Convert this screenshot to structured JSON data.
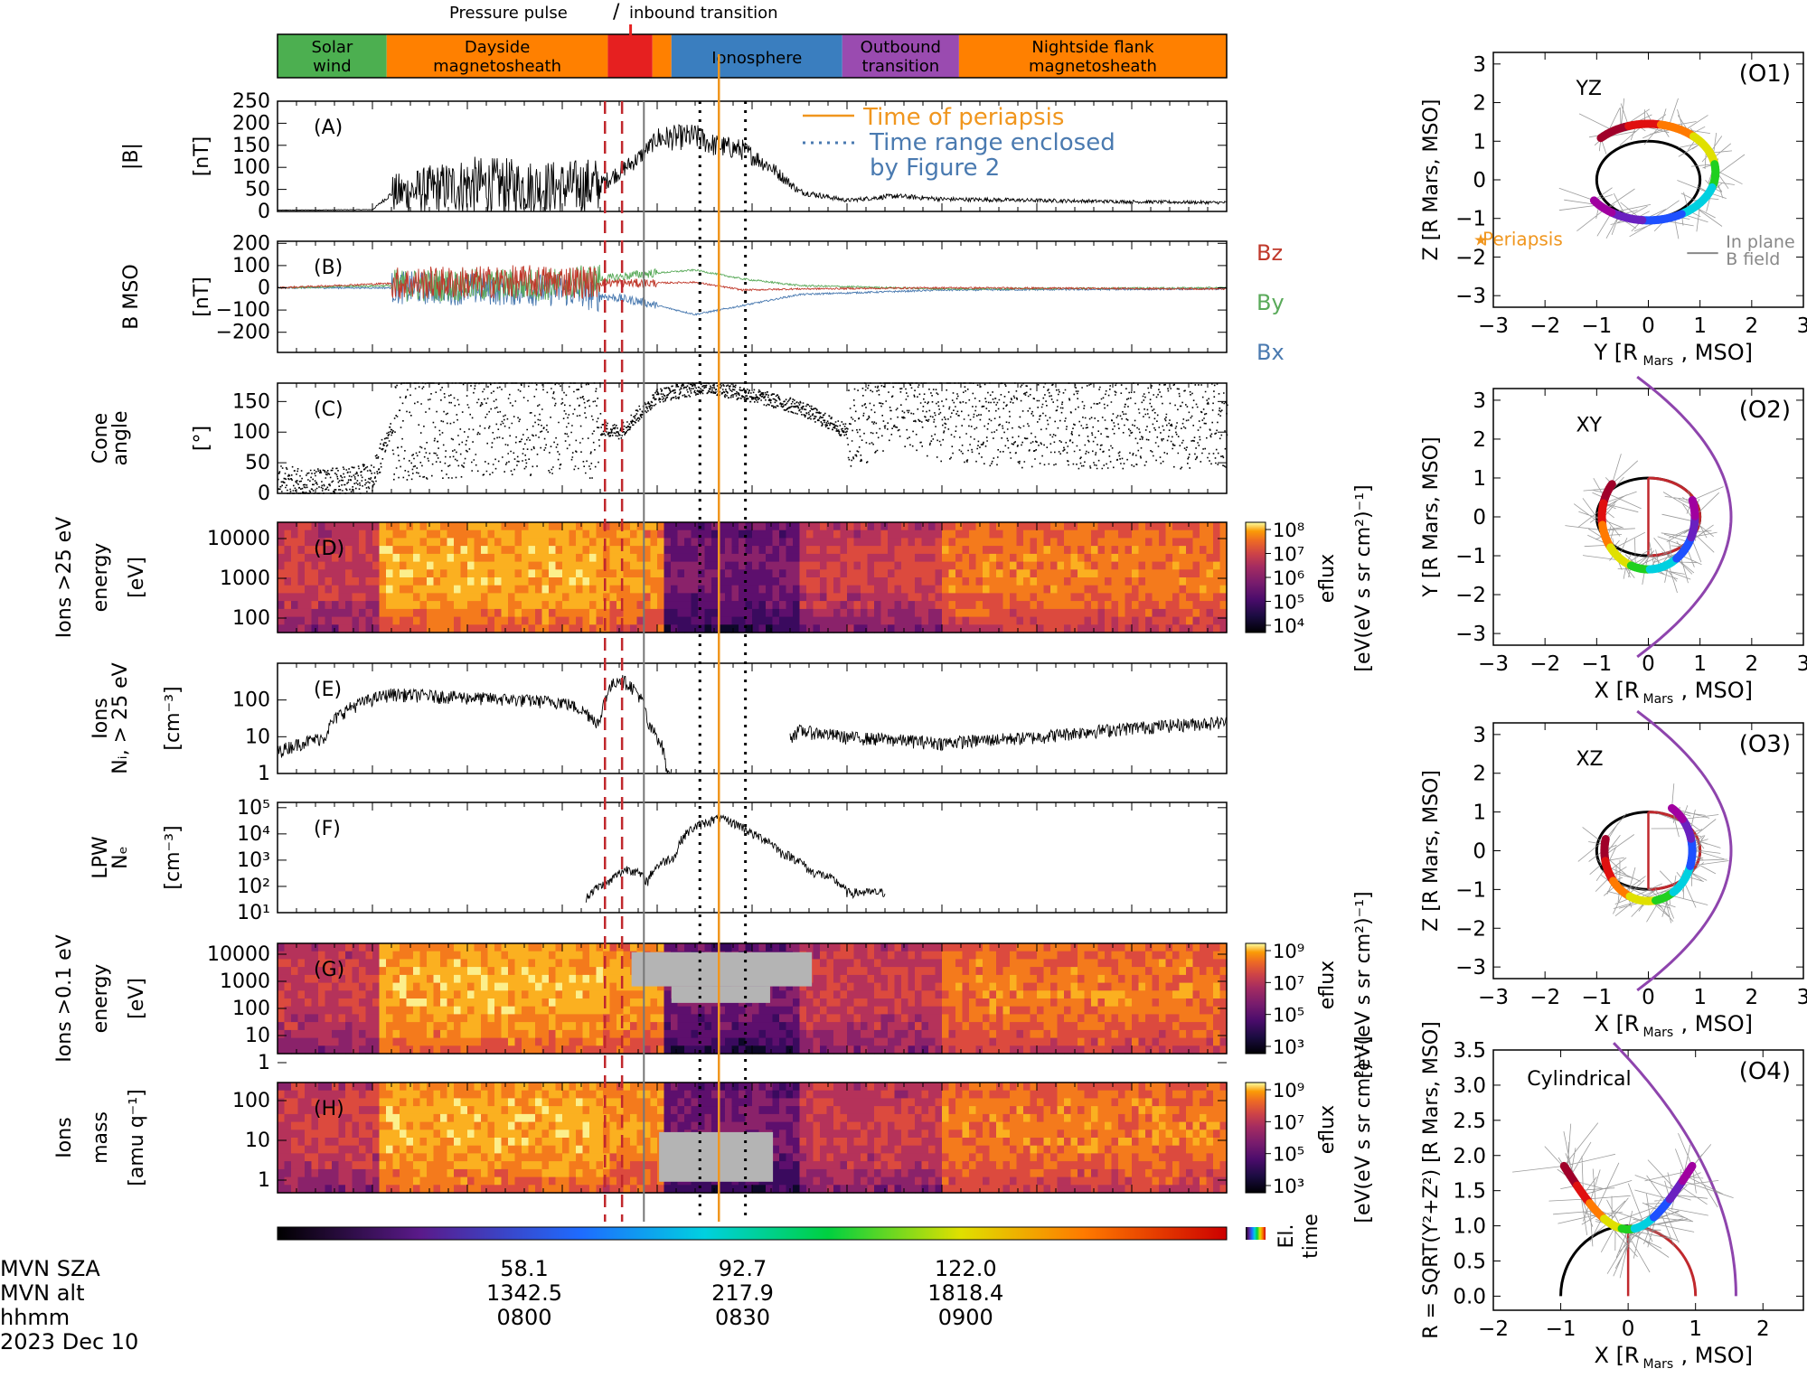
{
  "figure": {
    "date": "2023 Dec 10",
    "top_annotations": {
      "pressure_pulse": "Pressure pulse",
      "slash": "/",
      "inbound": "inbound transition"
    },
    "regions": [
      {
        "label1": "Solar",
        "label2": "wind",
        "color": "#4caf50",
        "t0": 0,
        "t1": 11.5
      },
      {
        "label1": "Dayside",
        "label2": "magnetosheath",
        "color": "#ff8000",
        "t0": 11.5,
        "t1": 34.8
      },
      {
        "label1": "",
        "label2": "",
        "color": "#e62020",
        "t0": 34.8,
        "t1": 39.5
      },
      {
        "label1": "",
        "label2": "",
        "color": "#ff8000",
        "t0": 39.5,
        "t1": 41.5
      },
      {
        "label1": "Ionosphere",
        "label2": "",
        "color": "#3a7ebf",
        "t0": 41.5,
        "t1": 59.5
      },
      {
        "label1": "Outbound",
        "label2": "transition",
        "color": "#9a4bb0",
        "t0": 59.5,
        "t1": 71.8
      },
      {
        "label1": "Nightside flank",
        "label2": "magnetosheath",
        "color": "#ff8000",
        "t0": 71.8,
        "t1": 100
      }
    ],
    "event_lines": {
      "pressure_pulse_dashed_t": [
        34.5,
        36.3
      ],
      "inbound_solid_t": 38.6,
      "figure2_dotted_t": [
        44.5,
        49.3
      ],
      "periapsis_t": 46.5
    },
    "colors": {
      "periapsis": "#f0961e",
      "dashed": "#c0282d",
      "figure2": "#000000",
      "bz": "#c0392b",
      "by": "#5aaa5a",
      "bx": "#4a7ab0"
    },
    "panels": [
      {
        "id": "A",
        "tag": "(A)",
        "ylabel1": "|B|",
        "ylabel2": "[nT]",
        "ticks": [
          "250",
          "200",
          "150",
          "100",
          "50",
          "0"
        ],
        "legend": {
          "periapsis": "Time of periapsis",
          "fig2_line1": "Time range enclosed",
          "fig2_line2": "by Figure 2"
        }
      },
      {
        "id": "B",
        "tag": "(B)",
        "ylabel1": "B MSO",
        "ylabel2": "[nT]",
        "ticks": [
          "200",
          "100",
          "0",
          "−100",
          "−200"
        ],
        "series_labels": [
          "Bz",
          "By",
          "Bx"
        ]
      },
      {
        "id": "C",
        "tag": "(C)",
        "ylabel1": "Cone",
        "ylabel2": "angle",
        "ylabel3": "[°]",
        "ticks": [
          "150",
          "100",
          "50",
          "0"
        ]
      },
      {
        "id": "D",
        "tag": "(D)",
        "ylabel1": "Ions >25 eV",
        "ylabel2": "energy",
        "ylabel3": "[eV]",
        "ticks": [
          "10000",
          "1000",
          "100"
        ],
        "cbar_ticks": [
          "10⁸",
          "10⁷",
          "10⁶",
          "10⁵",
          "10⁴"
        ],
        "cbar_label1": "eflux",
        "cbar_label2": "[eV(eV s sr cm²)⁻¹]"
      },
      {
        "id": "E",
        "tag": "(E)",
        "ylabel1": "Ions",
        "ylabel2": "Nᵢ, > 25 eV",
        "ylabel3": "[cm⁻³]",
        "ticks": [
          "100",
          "10",
          "1"
        ]
      },
      {
        "id": "F",
        "tag": "(F)",
        "ylabel1": "LPW",
        "ylabel2": "Nₑ",
        "ylabel3": "[cm⁻³]",
        "ticks": [
          "10⁵",
          "10⁴",
          "10³",
          "10²",
          "10¹"
        ]
      },
      {
        "id": "G",
        "tag": "(G)",
        "ylabel1": "Ions >0.1 eV",
        "ylabel2": "energy",
        "ylabel3": "[eV]",
        "ticks": [
          "10000",
          "1000",
          "100",
          "10",
          "1"
        ],
        "cbar_ticks": [
          "10⁹",
          "10⁷",
          "10⁵",
          "10³"
        ],
        "cbar_label1": "eflux",
        "cbar_label2": "[eV(eV s sr cm²)⁻¹]"
      },
      {
        "id": "H",
        "tag": "(H)",
        "ylabel1": "Ions",
        "ylabel2": "mass",
        "ylabel3": "[amu q⁻¹]",
        "ticks": [
          "100",
          "10",
          "1"
        ],
        "cbar_ticks": [
          "10⁹",
          "10⁷",
          "10⁵",
          "10³"
        ],
        "cbar_label1": "eflux",
        "cbar_label2": "[eV(eV s sr cm²)⁻¹]"
      }
    ],
    "elapsed_time_label": {
      "l1": "El.",
      "l2": "time"
    },
    "footer": {
      "rows": [
        "MVN SZA",
        "MVN alt",
        "hhmm",
        "2023 Dec 10"
      ],
      "columns": [
        {
          "sza": "58.1",
          "alt": "1342.5",
          "hhmm": "0800",
          "t": 26.0
        },
        {
          "sza": "92.7",
          "alt": "217.9",
          "hhmm": "0830",
          "t": 49.0
        },
        {
          "sza": "122.0",
          "alt": "1818.4",
          "hhmm": "0900",
          "t": 72.5
        }
      ]
    },
    "orbit_panels": [
      {
        "id": "O1",
        "tag": "(O1)",
        "plane": "YZ",
        "xlabel": "Y [R",
        "ylabel": "Z [R",
        "xticks": [
          "−3",
          "−2",
          "−1",
          "0",
          "1",
          "2",
          "3"
        ],
        "yticks": [
          "3",
          "2",
          "1",
          "0",
          "−1",
          "−2",
          "−3"
        ],
        "legend_periapsis": "Periapsis",
        "legend_b1": "In plane",
        "legend_b2": "B field"
      },
      {
        "id": "O2",
        "tag": "(O2)",
        "plane": "XY",
        "xlabel": "X [R",
        "ylabel": "Y [R",
        "xticks": [
          "−3",
          "−2",
          "−1",
          "0",
          "1",
          "2",
          "3"
        ],
        "yticks": [
          "3",
          "2",
          "1",
          "0",
          "−1",
          "−2",
          "−3"
        ]
      },
      {
        "id": "O3",
        "tag": "(O3)",
        "plane": "XZ",
        "xlabel": "X [R",
        "ylabel": "Z [R",
        "xticks": [
          "−3",
          "−2",
          "−1",
          "0",
          "1",
          "2",
          "3"
        ],
        "yticks": [
          "3",
          "2",
          "1",
          "0",
          "−1",
          "−2",
          "−3"
        ]
      },
      {
        "id": "O4",
        "tag": "(O4)",
        "plane": "Cylindrical",
        "xlabel": "X [R",
        "ylabel": "R = SQRT(Y²+Z²) [R",
        "xticks": [
          "−2",
          "−1",
          "0",
          "1",
          "2"
        ],
        "yticks": [
          "3.5",
          "3.0",
          "2.5",
          "2.0",
          "1.5",
          "1.0",
          "0.5",
          "0.0"
        ]
      }
    ],
    "mars_sub": "Mars",
    "mso": ", MSO]"
  },
  "chart_data": {
    "type": "line",
    "title": "",
    "x_axis": {
      "label": "hhmm",
      "ticks": [
        "0800",
        "0830",
        "0900"
      ],
      "sza": [
        58.1,
        92.7,
        122.0
      ],
      "alt_km": [
        1342.5,
        217.9,
        1818.4
      ]
    },
    "regions": [
      "Solar wind",
      "Dayside magnetosheath",
      "Pressure pulse / inbound transition",
      "Ionosphere",
      "Outbound transition",
      "Nightside flank magnetosheath"
    ],
    "series": [
      {
        "name": "|B|",
        "unit": "nT",
        "ylim": [
          0,
          250
        ],
        "t": [
          0,
          10,
          12,
          20,
          30,
          34,
          36,
          38,
          40,
          44,
          46,
          49,
          52,
          55,
          60,
          65,
          70,
          80,
          90,
          100
        ],
        "values": [
          3,
          4,
          40,
          60,
          55,
          60,
          90,
          120,
          165,
          170,
          150,
          140,
          100,
          45,
          25,
          35,
          28,
          25,
          22,
          20
        ]
      },
      {
        "name": "Bz",
        "unit": "nT",
        "t": [
          0,
          12,
          30,
          38,
          44,
          49,
          55,
          70,
          100
        ],
        "values": [
          0,
          20,
          30,
          20,
          25,
          -10,
          -5,
          0,
          -5
        ]
      },
      {
        "name": "By",
        "unit": "nT",
        "t": [
          0,
          12,
          30,
          38,
          44,
          49,
          55,
          70,
          100
        ],
        "values": [
          0,
          10,
          15,
          60,
          80,
          40,
          10,
          -5,
          0
        ]
      },
      {
        "name": "Bx",
        "unit": "nT",
        "t": [
          0,
          12,
          30,
          38,
          44,
          49,
          55,
          70,
          100
        ],
        "values": [
          0,
          0,
          -10,
          -60,
          -120,
          -80,
          -30,
          -10,
          -5
        ]
      },
      {
        "name": "Cone angle",
        "unit": "°",
        "ylim": [
          0,
          180
        ],
        "t": [
          0,
          5,
          10,
          12,
          30,
          36,
          40,
          45,
          50,
          55,
          60,
          65,
          70,
          80,
          100
        ],
        "values": [
          20,
          15,
          25,
          110,
          120,
          100,
          160,
          175,
          160,
          140,
          100,
          150,
          120,
          110,
          110
        ]
      },
      {
        "name": "Ions Ni > 25 eV",
        "unit": "cm⁻³",
        "log": true,
        "t": [
          0,
          5,
          12,
          20,
          30,
          34,
          36,
          39,
          41,
          52,
          55,
          60,
          70,
          80,
          90,
          99
        ],
        "values": [
          4,
          10,
          150,
          120,
          90,
          20,
          400,
          20,
          1,
          1,
          15,
          10,
          7,
          10,
          18,
          25
        ]
      },
      {
        "name": "LPW Ne",
        "unit": "cm⁻³",
        "log": true,
        "t": [
          32.5,
          35,
          37,
          39,
          42,
          46.5,
          50,
          53,
          56,
          60,
          64
        ],
        "values": [
          40,
          150,
          500,
          150,
          1500,
          40000,
          10000,
          2000,
          400,
          60,
          60
        ]
      }
    ]
  }
}
